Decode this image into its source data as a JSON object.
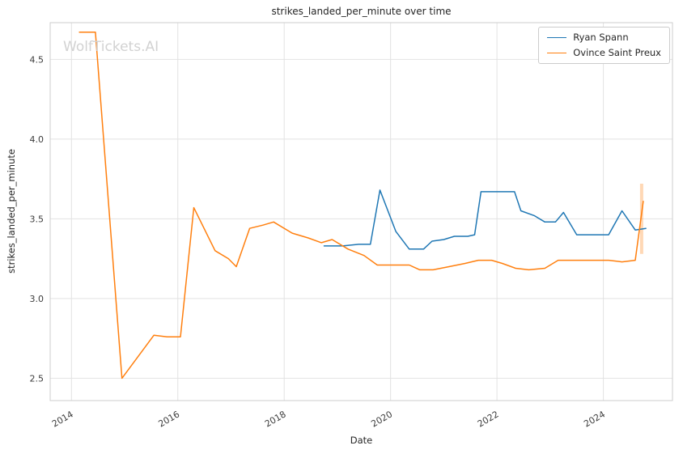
{
  "watermark": "WolfTickets.AI",
  "chart_data": {
    "type": "line",
    "title": "strikes_landed_per_minute over time",
    "xlabel": "Date",
    "ylabel": "strikes_landed_per_minute",
    "xlim": [
      2013.6,
      2025.3
    ],
    "ylim": [
      2.36,
      4.73
    ],
    "grid": true,
    "legend_position": "upper right",
    "x_ticks": [
      2014,
      2016,
      2018,
      2020,
      2022,
      2024
    ],
    "x_tick_labels": [
      "2014",
      "2016",
      "2018",
      "2020",
      "2022",
      "2024"
    ],
    "y_ticks": [
      2.5,
      3.0,
      3.5,
      4.0,
      4.5
    ],
    "y_tick_labels": [
      "2.5",
      "3.0",
      "3.5",
      "4.0",
      "4.5"
    ],
    "colors": {
      "grid": "#e2e2e2",
      "spine": "#cccccc",
      "tick_text": "#3b3b3b"
    },
    "series": [
      {
        "name": "Ryan Spann",
        "color": "#1f77b4",
        "x": [
          2018.75,
          2019.1,
          2019.4,
          2019.62,
          2019.8,
          2020.1,
          2020.35,
          2020.62,
          2020.78,
          2021.0,
          2021.2,
          2021.45,
          2021.58,
          2021.7,
          2022.0,
          2022.33,
          2022.45,
          2022.7,
          2022.9,
          2023.1,
          2023.25,
          2023.5,
          2023.8,
          2024.1,
          2024.35,
          2024.6,
          2024.8
        ],
        "y": [
          3.33,
          3.33,
          3.34,
          3.34,
          3.68,
          3.42,
          3.31,
          3.31,
          3.36,
          3.37,
          3.39,
          3.39,
          3.4,
          3.67,
          3.67,
          3.67,
          3.55,
          3.52,
          3.48,
          3.48,
          3.54,
          3.4,
          3.4,
          3.4,
          3.55,
          3.43,
          3.44
        ]
      },
      {
        "name": "Ovince Saint Preux",
        "color": "#ff7f0e",
        "x": [
          2014.15,
          2014.45,
          2014.95,
          2015.55,
          2015.8,
          2016.05,
          2016.3,
          2016.7,
          2016.95,
          2017.1,
          2017.35,
          2017.6,
          2017.8,
          2018.15,
          2018.45,
          2018.7,
          2018.9,
          2019.2,
          2019.5,
          2019.75,
          2020.1,
          2020.35,
          2020.55,
          2020.8,
          2021.1,
          2021.4,
          2021.65,
          2021.9,
          2022.1,
          2022.35,
          2022.6,
          2022.9,
          2023.15,
          2023.5,
          2023.8,
          2024.1,
          2024.35,
          2024.6,
          2024.75
        ],
        "y": [
          4.67,
          4.67,
          2.5,
          2.77,
          2.76,
          2.76,
          3.57,
          3.3,
          3.25,
          3.2,
          3.44,
          3.46,
          3.48,
          3.41,
          3.38,
          3.35,
          3.37,
          3.31,
          3.27,
          3.21,
          3.21,
          3.21,
          3.18,
          3.18,
          3.2,
          3.22,
          3.24,
          3.24,
          3.22,
          3.19,
          3.18,
          3.19,
          3.24,
          3.24,
          3.24,
          3.24,
          3.23,
          3.24,
          3.61
        ]
      }
    ],
    "annotations": [
      {
        "type": "vertical-band",
        "x": 2024.72,
        "y0": 3.28,
        "y1": 3.72,
        "color": "#ff7f0e",
        "opacity": 0.3
      }
    ]
  }
}
